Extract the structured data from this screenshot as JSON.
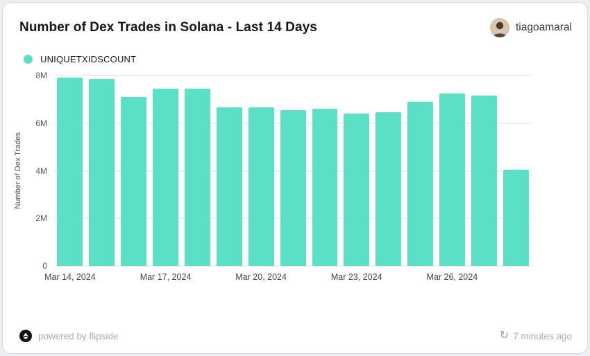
{
  "colors": {
    "accent": "#5CE0C5",
    "grid": "#d9dce0"
  },
  "header": {
    "title": "Number of Dex Trades in Solana - Last 14 Days",
    "user": "tiagoamaral"
  },
  "legend": {
    "label": "UNIQUETXIDSCOUNT"
  },
  "chart_data": {
    "type": "bar",
    "title": "Number of Dex Trades in Solana - Last 14 Days",
    "series_name": "UNIQUETXIDSCOUNT",
    "xlabel": "",
    "ylabel": "Number of Dex Trades",
    "ylim": [
      0,
      8000000
    ],
    "grid": true,
    "legend_position": "top-left",
    "x": [
      "Mar 14, 2024",
      "Mar 15, 2024",
      "Mar 16, 2024",
      "Mar 17, 2024",
      "Mar 18, 2024",
      "Mar 19, 2024",
      "Mar 20, 2024",
      "Mar 21, 2024",
      "Mar 22, 2024",
      "Mar 23, 2024",
      "Mar 24, 2024",
      "Mar 25, 2024",
      "Mar 26, 2024",
      "Mar 27, 2024",
      "Mar 28, 2024"
    ],
    "values": [
      7900000,
      7850000,
      7100000,
      7450000,
      7450000,
      6650000,
      6650000,
      6550000,
      6600000,
      6400000,
      6450000,
      6900000,
      7250000,
      7150000,
      4050000
    ],
    "yticks": [
      {
        "label": "0",
        "value": 0
      },
      {
        "label": "2M",
        "value": 2000000
      },
      {
        "label": "4M",
        "value": 4000000
      },
      {
        "label": "6M",
        "value": 6000000
      },
      {
        "label": "8M",
        "value": 8000000
      }
    ],
    "xticks": [
      {
        "label": "Mar 14, 2024",
        "index": 0
      },
      {
        "label": "Mar 17, 2024",
        "index": 3
      },
      {
        "label": "Mar 20, 2024",
        "index": 6
      },
      {
        "label": "Mar 23, 2024",
        "index": 9
      },
      {
        "label": "Mar 26, 2024",
        "index": 12
      }
    ]
  },
  "footer": {
    "powered_by": "powered by flipside",
    "updated": "7 minutes ago"
  },
  "icons": {
    "refresh": "↻"
  }
}
